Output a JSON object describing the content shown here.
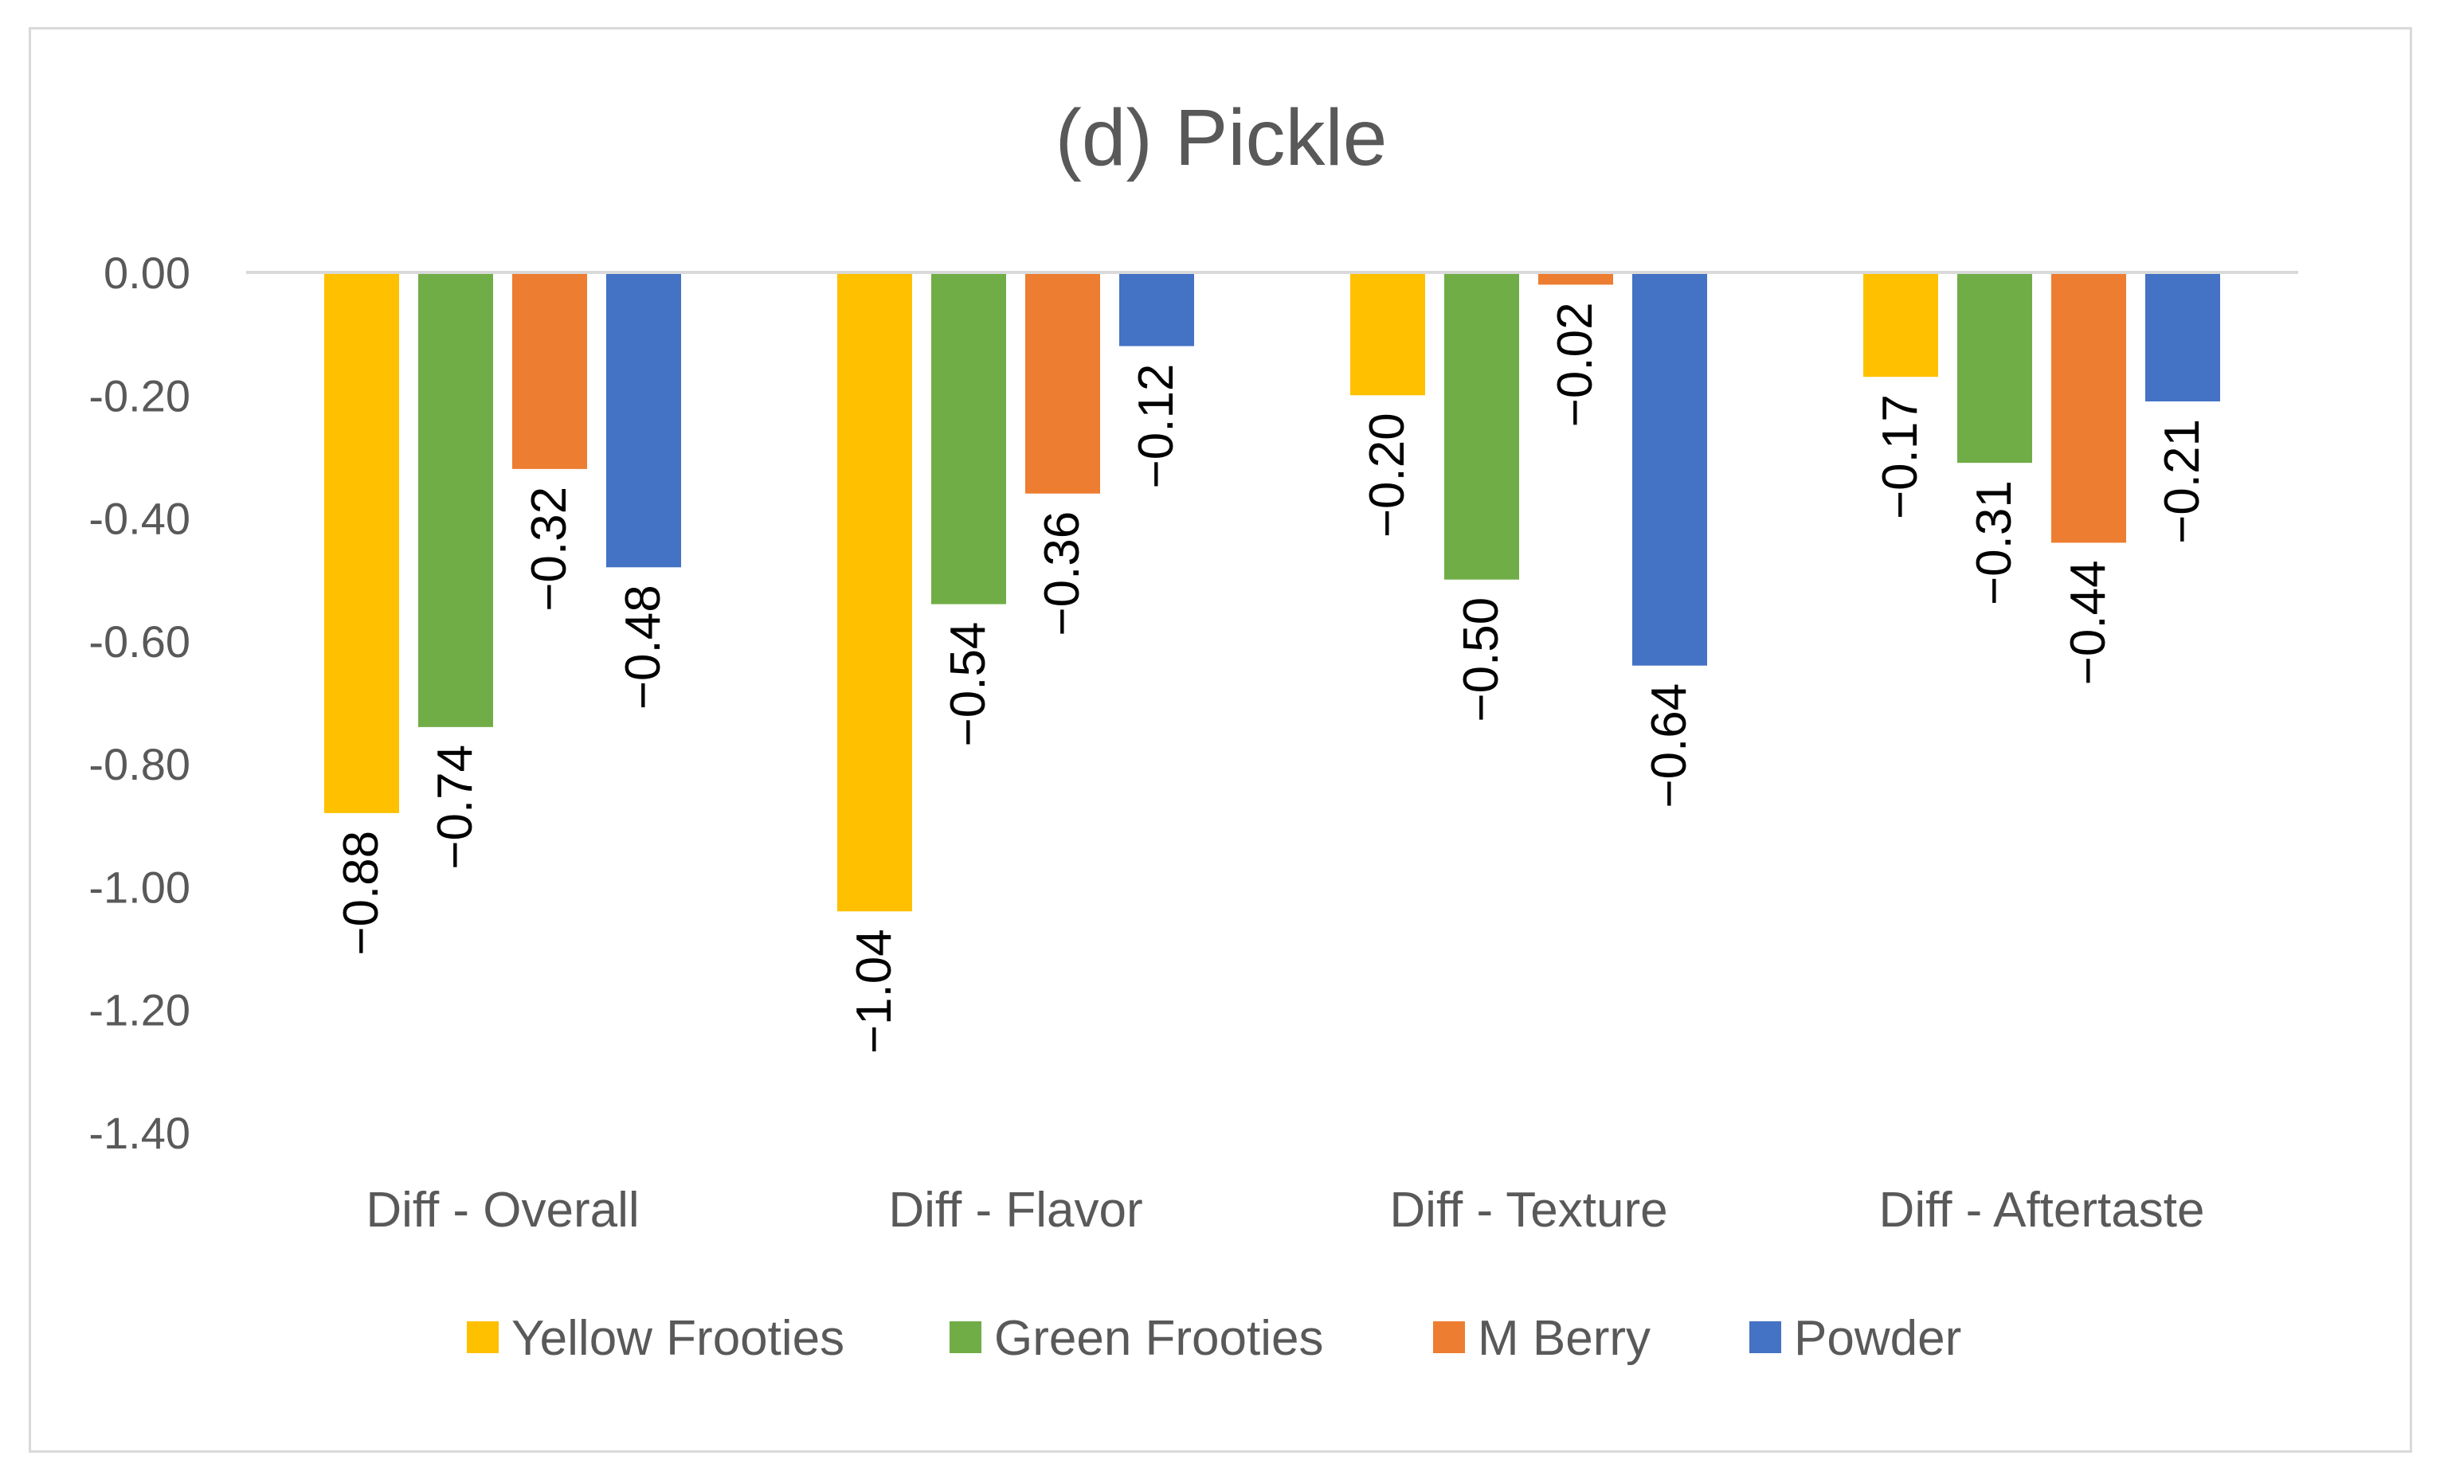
{
  "chart_data": {
    "type": "bar",
    "title": "(d) Pickle",
    "xlabel": "",
    "ylabel": "",
    "ylim": [
      -1.4,
      0.0
    ],
    "yticks": [
      0.0,
      -0.2,
      -0.4,
      -0.6,
      -0.8,
      -1.0,
      -1.2,
      -1.4
    ],
    "ytick_labels": [
      "0.00",
      "-0.20",
      "-0.40",
      "-0.60",
      "-0.80",
      "-1.00",
      "-1.20",
      "-1.40"
    ],
    "grid": false,
    "legend_position": "bottom",
    "categories": [
      "Diff - Overall",
      "Diff - Flavor",
      "Diff - Texture",
      "Diff - Aftertaste"
    ],
    "series": [
      {
        "name": "Yellow Frooties",
        "color": "#FFC000",
        "values": [
          -0.88,
          -1.04,
          -0.2,
          -0.17
        ],
        "labels": [
          "−0.88",
          "−1.04",
          "−0.20",
          "−0.17"
        ]
      },
      {
        "name": "Green Frooties",
        "color": "#70AD47",
        "values": [
          -0.74,
          -0.54,
          -0.5,
          -0.31
        ],
        "labels": [
          "−0.74",
          "−0.54",
          "−0.50",
          "−0.31"
        ]
      },
      {
        "name": "M Berry",
        "color": "#ED7D31",
        "values": [
          -0.32,
          -0.36,
          -0.02,
          -0.44
        ],
        "labels": [
          "−0.32",
          "−0.36",
          "−0.02",
          "−0.44"
        ]
      },
      {
        "name": "Powder",
        "color": "#4472C4",
        "values": [
          -0.48,
          -0.12,
          -0.64,
          -0.21
        ],
        "labels": [
          "−0.48",
          "−0.12",
          "−0.64",
          "−0.21"
        ]
      }
    ]
  }
}
